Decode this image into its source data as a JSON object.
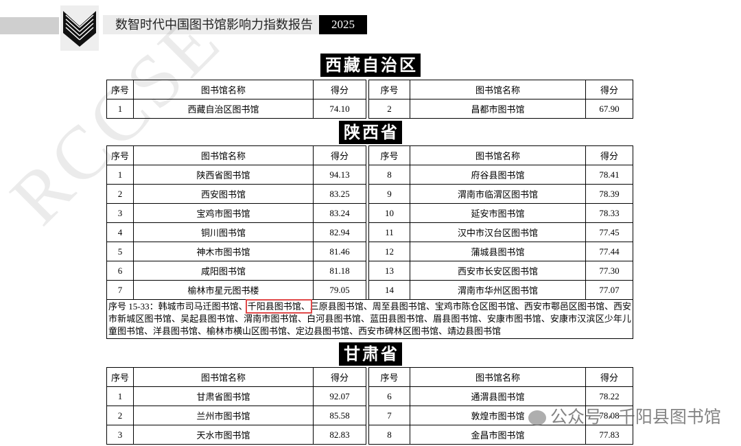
{
  "header": {
    "title": "数智时代中国图书馆影响力指数报告",
    "year": "2025"
  },
  "watermarks": [
    "RCCSE",
    "公众号 · 千阳县图书馆"
  ],
  "columns": [
    "序号",
    "图书馆名称",
    "得分"
  ],
  "sections": [
    {
      "region": "西藏自治区",
      "rows": [
        [
          "1",
          "西藏自治区图书馆",
          "74.10",
          "2",
          "昌都市图书馆",
          "67.90"
        ]
      ]
    },
    {
      "region": "陕西省",
      "rows": [
        [
          "1",
          "陕西省图书馆",
          "94.13",
          "8",
          "府谷县图书馆",
          "78.41"
        ],
        [
          "2",
          "西安图书馆",
          "83.25",
          "9",
          "渭南市临渭区图书馆",
          "78.39"
        ],
        [
          "3",
          "宝鸡市图书馆",
          "83.24",
          "10",
          "延安市图书馆",
          "78.33"
        ],
        [
          "4",
          "铜川图书馆",
          "82.94",
          "11",
          "汉中市汉台区图书馆",
          "77.45"
        ],
        [
          "5",
          "神木市图书馆",
          "81.46",
          "12",
          "蒲城县图书馆",
          "77.44"
        ],
        [
          "6",
          "咸阳图书馆",
          "81.18",
          "13",
          "西安市长安区图书馆",
          "77.30"
        ],
        [
          "7",
          "榆林市星元图书楼",
          "79.05",
          "14",
          "渭南市华州区图书馆",
          "77.07"
        ]
      ],
      "note": {
        "prefix": "序号 15-33：韩城市司马迁图书馆、",
        "highlight": "千阳县图书馆、",
        "rest": "三原县图书馆、周至县图书馆、宝鸡市陈仓区图书馆、西安市鄠邑区图书馆、西安市新城区图书馆、吴起县图书馆、渭南市图书馆、白河县图书馆、蓝田县图书馆、眉县图书馆、安康市图书馆、安康市汉滨区少年儿童图书馆、洋县图书馆、榆林市横山区图书馆、定边县图书馆、西安市碑林区图书馆、靖边县图书馆"
      }
    },
    {
      "region": "甘肃省",
      "rows": [
        [
          "1",
          "甘肃省图书馆",
          "92.07",
          "6",
          "通渭县图书馆",
          "78.22"
        ],
        [
          "2",
          "兰州市图书馆",
          "85.58",
          "7",
          "敦煌市图书馆",
          "78.08"
        ],
        [
          "3",
          "天水市图书馆",
          "82.83",
          "8",
          "金昌市图书馆",
          "77.83"
        ]
      ]
    }
  ]
}
